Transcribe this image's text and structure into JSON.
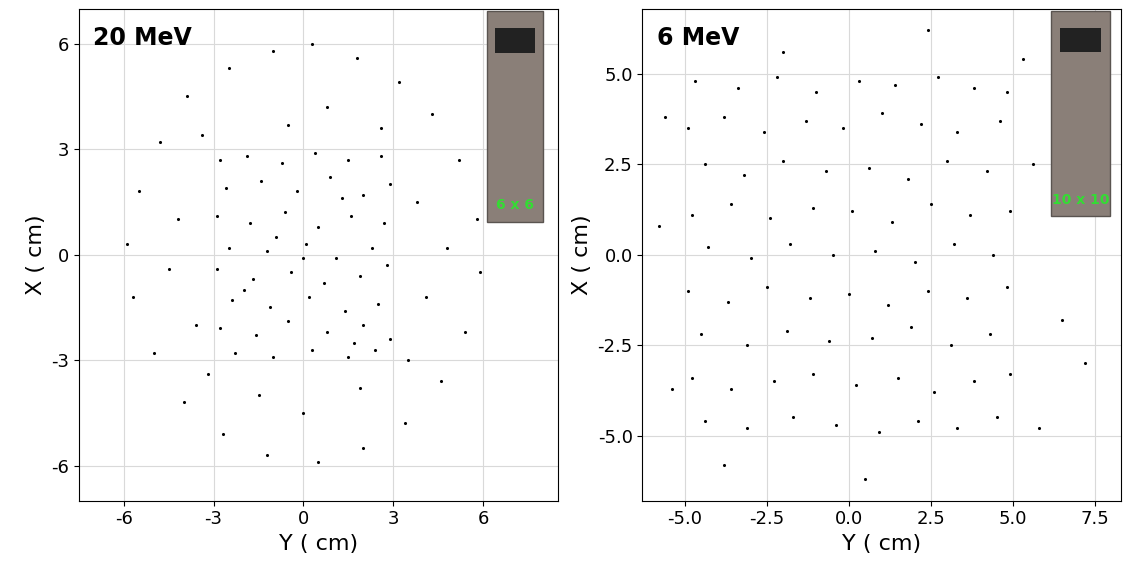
{
  "chart_data": [
    {
      "type": "scatter",
      "color": "#000000",
      "marker": "o",
      "grid": true,
      "xlabel": "Y ( cm)",
      "ylabel": "X ( cm)",
      "annotations": [
        "20 MeV",
        "6 x 6"
      ],
      "xlim": [
        -7.5,
        8.5
      ],
      "ylim": [
        -7,
        7
      ],
      "xticks": [
        -6,
        -3,
        0,
        3,
        6
      ],
      "yticks": [
        -6,
        -3,
        0,
        3,
        6
      ],
      "x": [
        -2.8,
        -1.9,
        -0.7,
        0.4,
        1.5,
        2.6,
        -2.6,
        -1.4,
        -0.2,
        0.9,
        2.0,
        2.9,
        -2.9,
        -1.8,
        -0.6,
        0.5,
        1.6,
        2.7,
        -2.5,
        -1.2,
        0.1,
        1.1,
        2.3,
        -2.9,
        -1.7,
        -0.4,
        0.7,
        1.9,
        2.8,
        -2.4,
        -1.1,
        0.2,
        1.4,
        2.5,
        -2.8,
        -1.6,
        -0.5,
        0.8,
        2.0,
        2.9,
        -2.3,
        -1.0,
        0.3,
        1.5,
        2.4,
        -0.9,
        1.3,
        -2.0,
        0.0,
        1.7,
        -5.9,
        -5.5,
        -4.8,
        -3.9,
        -2.5,
        -1.0,
        0.3,
        1.8,
        3.2,
        4.3,
        5.2,
        5.8,
        5.9,
        5.4,
        4.6,
        3.4,
        2.0,
        0.5,
        -1.2,
        -2.7,
        -4.0,
        -5.0,
        -5.7,
        -4.2,
        -3.6,
        -4.5,
        3.8,
        4.1,
        3.5,
        -3.4,
        0.8,
        -1.5,
        1.9,
        -0.5,
        2.6,
        4.8,
        -3.2,
        0.0
      ],
      "y": [
        2.7,
        2.8,
        2.6,
        2.9,
        2.7,
        2.8,
        1.9,
        2.1,
        1.8,
        2.2,
        1.7,
        2.0,
        1.1,
        0.9,
        1.2,
        0.8,
        1.1,
        0.9,
        0.2,
        0.1,
        0.3,
        -0.1,
        0.2,
        -0.4,
        -0.7,
        -0.5,
        -0.8,
        -0.6,
        -0.3,
        -1.3,
        -1.5,
        -1.2,
        -1.6,
        -1.4,
        -2.1,
        -2.3,
        -1.9,
        -2.2,
        -2.0,
        -2.4,
        -2.8,
        -2.9,
        -2.7,
        -2.9,
        -2.7,
        0.5,
        1.6,
        -1.0,
        -0.1,
        -2.5,
        0.3,
        1.8,
        3.2,
        4.5,
        5.3,
        5.8,
        6.0,
        5.6,
        4.9,
        4.0,
        2.7,
        1.0,
        -0.5,
        -2.2,
        -3.6,
        -4.8,
        -5.5,
        -5.9,
        -5.7,
        -5.1,
        -4.2,
        -2.8,
        -1.2,
        1.0,
        -2.0,
        -0.4,
        1.5,
        -1.2,
        -3.0,
        3.4,
        4.2,
        -4.0,
        -3.8,
        3.7,
        3.6,
        0.2,
        -3.4,
        -4.5
      ]
    },
    {
      "type": "scatter",
      "color": "#000000",
      "marker": "o",
      "grid": true,
      "xlabel": "Y ( cm)",
      "ylabel": "X ( cm)",
      "annotations": [
        "6 MeV",
        "10 x 10"
      ],
      "xlim": [
        -6.3,
        8.3
      ],
      "ylim": [
        -6.8,
        6.8
      ],
      "xticks": [
        -5.0,
        -2.5,
        0.0,
        2.5,
        5.0,
        7.5
      ],
      "yticks": [
        -5.0,
        -2.5,
        0.0,
        2.5,
        5.0
      ],
      "x": [
        -4.7,
        -3.4,
        -2.2,
        -1.0,
        0.3,
        1.4,
        2.7,
        3.8,
        4.8,
        -4.9,
        -3.8,
        -2.6,
        -1.3,
        -0.2,
        1.0,
        2.2,
        3.3,
        4.6,
        -4.4,
        -3.2,
        -2.0,
        -0.7,
        0.6,
        1.8,
        3.0,
        4.2,
        -4.8,
        -3.6,
        -2.4,
        -1.1,
        0.1,
        1.3,
        2.5,
        3.7,
        4.9,
        -4.3,
        -3.0,
        -1.8,
        -0.5,
        0.8,
        2.0,
        3.2,
        4.4,
        -4.9,
        -3.7,
        -2.5,
        -1.2,
        0.0,
        1.2,
        2.4,
        3.6,
        4.8,
        -4.5,
        -3.1,
        -1.9,
        -0.6,
        0.7,
        1.9,
        3.1,
        4.3,
        -4.8,
        -3.6,
        -2.3,
        -1.1,
        0.2,
        1.5,
        2.6,
        3.8,
        4.9,
        -4.4,
        -3.1,
        -1.7,
        -0.4,
        0.9,
        2.1,
        3.3,
        4.5,
        -5.6,
        -5.4,
        5.6,
        6.5,
        7.2,
        5.8,
        -3.8,
        0.5,
        2.4,
        -2.0,
        -5.8,
        5.3
      ],
      "y": [
        4.8,
        4.6,
        4.9,
        4.5,
        4.8,
        4.7,
        4.9,
        4.6,
        4.5,
        3.5,
        3.8,
        3.4,
        3.7,
        3.5,
        3.9,
        3.6,
        3.4,
        3.7,
        2.5,
        2.2,
        2.6,
        2.3,
        2.4,
        2.1,
        2.6,
        2.3,
        1.1,
        1.4,
        1.0,
        1.3,
        1.2,
        0.9,
        1.4,
        1.1,
        1.2,
        0.2,
        -0.1,
        0.3,
        0.0,
        0.1,
        -0.2,
        0.3,
        0.0,
        -1.0,
        -1.3,
        -0.9,
        -1.2,
        -1.1,
        -1.4,
        -1.0,
        -1.2,
        -0.9,
        -2.2,
        -2.5,
        -2.1,
        -2.4,
        -2.3,
        -2.0,
        -2.5,
        -2.2,
        -3.4,
        -3.7,
        -3.5,
        -3.3,
        -3.6,
        -3.4,
        -3.8,
        -3.5,
        -3.3,
        -4.6,
        -4.8,
        -4.5,
        -4.7,
        -4.9,
        -4.6,
        -4.8,
        -4.5,
        3.8,
        -3.7,
        2.5,
        -1.8,
        -3.0,
        -4.8,
        -5.8,
        -6.2,
        6.2,
        5.6,
        0.8,
        5.4
      ]
    }
  ]
}
